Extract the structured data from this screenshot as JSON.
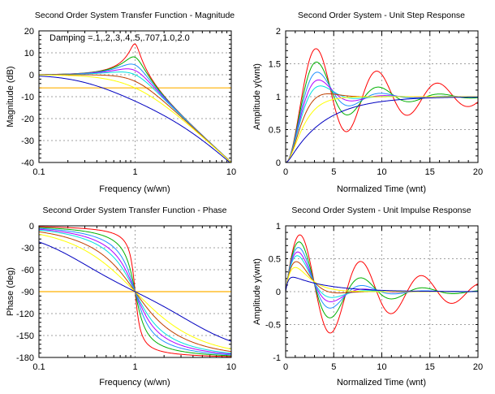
{
  "damping_colors": [
    "#ff0000",
    "#00b000",
    "#1e90ff",
    "#b000ff",
    "#00e0e0",
    "#c04000",
    "#ffff00",
    "#0000c0"
  ],
  "reference_color": "#ffb000",
  "chart_data": [
    {
      "type": "line",
      "title": "Second Order System Transfer Function - Magnitude",
      "xlabel": "Frequency (w/wn)",
      "ylabel": "Magnitude (dB)",
      "xscale": "log",
      "xlim": [
        0.1,
        10
      ],
      "ylim": [
        -40,
        20
      ],
      "xticks": [
        "0.1",
        "1",
        "10"
      ],
      "yticks": [
        "20",
        "10",
        "0",
        "-10",
        "-20",
        "-30",
        "-40"
      ],
      "grid": true,
      "annotation": "Damping =.1,.2,.3,.4,.5,.707,1.0,2.0",
      "reference_line": -6,
      "damping": [
        0.1,
        0.2,
        0.3,
        0.4,
        0.5,
        0.707,
        1.0,
        2.0
      ],
      "peak_values_db_at_w1": [
        14.0,
        8.0,
        4.4,
        1.9,
        0.0,
        -3.0,
        -6.0,
        -12.0
      ]
    },
    {
      "type": "line",
      "title": "Second Order System - Unit Step Response",
      "xlabel": "Normalized Time (wnt)",
      "ylabel": "Amplitude y(wnt)",
      "xlim": [
        0,
        20
      ],
      "ylim": [
        0,
        2
      ],
      "xticks": [
        "0",
        "5",
        "10",
        "15",
        "20"
      ],
      "yticks": [
        "2",
        "1.5",
        "1",
        "0.5",
        "0"
      ],
      "grid": true,
      "damping": [
        0.1,
        0.2,
        0.3,
        0.4,
        0.5,
        0.707,
        1.0,
        2.0
      ],
      "peak_overshoot": [
        1.73,
        1.53,
        1.37,
        1.25,
        1.16,
        1.04,
        1.0,
        1.0
      ]
    },
    {
      "type": "line",
      "title": "Second Order System Transfer Function - Phase",
      "xlabel": "Frequency (w/wn)",
      "ylabel": "Phase (deg)",
      "xscale": "log",
      "xlim": [
        0.1,
        10
      ],
      "ylim": [
        -180,
        0
      ],
      "xticks": [
        "0.1",
        "1",
        "10"
      ],
      "yticks": [
        "0",
        "-30",
        "-60",
        "-90",
        "-120",
        "-150",
        "-180"
      ],
      "grid": true,
      "reference_line": -90,
      "damping": [
        0.1,
        0.2,
        0.3,
        0.4,
        0.5,
        0.707,
        1.0,
        2.0
      ]
    },
    {
      "type": "line",
      "title": "Second Order System - Unit Impulse Response",
      "xlabel": "Normalized Time (wnt)",
      "ylabel": "Amplitude y(wnt)",
      "xlim": [
        0,
        20
      ],
      "ylim": [
        -1,
        1
      ],
      "xticks": [
        "0",
        "5",
        "10",
        "15",
        "20"
      ],
      "yticks": [
        "1",
        "0.5",
        "0",
        "-0.5",
        "-1"
      ],
      "grid": true,
      "damping": [
        0.1,
        0.2,
        0.3,
        0.4,
        0.5,
        0.707,
        1.0,
        2.0
      ]
    }
  ]
}
